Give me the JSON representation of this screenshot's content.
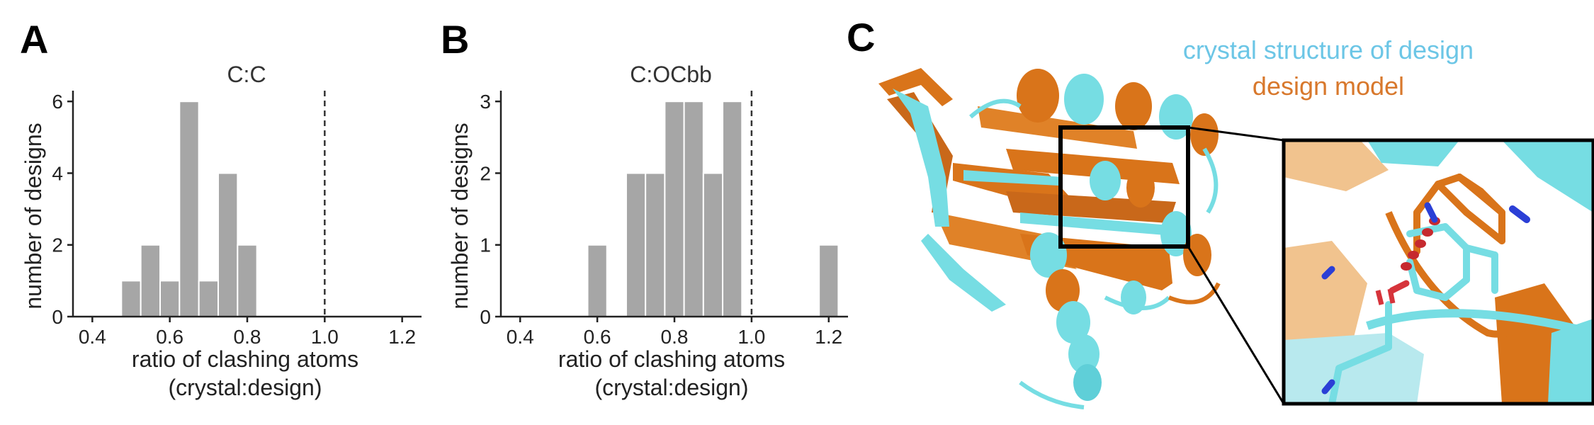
{
  "panels": {
    "a_label": "A",
    "b_label": "B",
    "c_label": "C"
  },
  "legend": {
    "crystal": {
      "text": "crystal structure of design",
      "color": "#6cc6e6"
    },
    "model": {
      "text": "design model",
      "color": "#d8782c"
    }
  },
  "colors": {
    "bar_fill": "#a6a6a6",
    "bar_edge": "#ffffff",
    "protein_cyan": "#76dde3",
    "protein_orange": "#d9741a",
    "nitrogen": "#2b3fd6",
    "oxygen": "#d6343b",
    "hbond": "#c62a2f"
  },
  "chart_data": [
    {
      "type": "bar",
      "title": "C:C",
      "xlabel": "ratio of clashing atoms",
      "xlabel2": "(crystal:design)",
      "ylabel": "number of designs",
      "xlim": [
        0.35,
        1.25
      ],
      "ylim": [
        0,
        6.3
      ],
      "bin_width": 0.05,
      "xticks": [
        "0.4",
        "0.6",
        "0.8",
        "1.0",
        "1.2"
      ],
      "xtick_values": [
        0.4,
        0.6,
        0.8,
        1.0,
        1.2
      ],
      "yticks": [
        "0",
        "2",
        "4",
        "6"
      ],
      "ytick_values": [
        0,
        2,
        4,
        6
      ],
      "reference_line": 1.0,
      "bins": [
        {
          "x0": 0.475,
          "count": 1
        },
        {
          "x0": 0.525,
          "count": 2
        },
        {
          "x0": 0.575,
          "count": 1
        },
        {
          "x0": 0.625,
          "count": 6
        },
        {
          "x0": 0.675,
          "count": 1
        },
        {
          "x0": 0.725,
          "count": 4
        },
        {
          "x0": 0.775,
          "count": 2
        }
      ]
    },
    {
      "type": "bar",
      "title": "C:OCbb",
      "xlabel": "ratio of clashing atoms",
      "xlabel2": "(crystal:design)",
      "ylabel": "number of designs",
      "xlim": [
        0.35,
        1.25
      ],
      "ylim": [
        0,
        3.15
      ],
      "bin_width": 0.05,
      "xticks": [
        "0.4",
        "0.6",
        "0.8",
        "1.0",
        "1.2"
      ],
      "xtick_values": [
        0.4,
        0.6,
        0.8,
        1.0,
        1.2
      ],
      "yticks": [
        "0",
        "1",
        "2",
        "3"
      ],
      "ytick_values": [
        0,
        1,
        2,
        3
      ],
      "reference_line": 1.0,
      "bins": [
        {
          "x0": 0.575,
          "count": 1
        },
        {
          "x0": 0.675,
          "count": 2
        },
        {
          "x0": 0.725,
          "count": 2
        },
        {
          "x0": 0.775,
          "count": 3
        },
        {
          "x0": 0.825,
          "count": 3
        },
        {
          "x0": 0.875,
          "count": 2
        },
        {
          "x0": 0.925,
          "count": 3
        },
        {
          "x0": 1.175,
          "count": 1
        }
      ]
    }
  ]
}
